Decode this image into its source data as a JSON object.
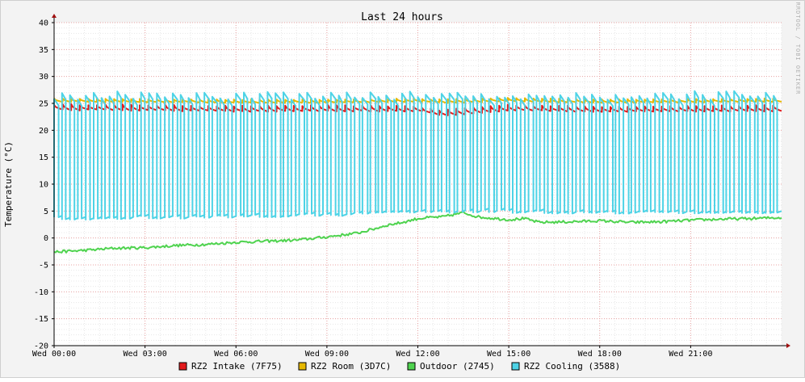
{
  "chart_data": {
    "type": "line",
    "title": "Last 24 hours",
    "ylabel": "Temperature (°C)",
    "xlabel": "",
    "watermark": "RRDTOOL / TOBI OETIKER",
    "ylim": [
      -20,
      40
    ],
    "yticks": [
      -20,
      -15,
      -10,
      -5,
      0,
      5,
      10,
      15,
      20,
      25,
      30,
      35,
      40
    ],
    "x_range_hours": [
      0,
      24
    ],
    "xticks": [
      {
        "hour": 0,
        "label": "Wed 00:00"
      },
      {
        "hour": 3,
        "label": "Wed 03:00"
      },
      {
        "hour": 6,
        "label": "Wed 06:00"
      },
      {
        "hour": 9,
        "label": "Wed 09:00"
      },
      {
        "hour": 12,
        "label": "Wed 12:00"
      },
      {
        "hour": 15,
        "label": "Wed 15:00"
      },
      {
        "hour": 18,
        "label": "Wed 18:00"
      },
      {
        "hour": 21,
        "label": "Wed 21:00"
      }
    ],
    "grid": true,
    "legend_position": "bottom",
    "series": [
      {
        "name": "RZ2 Intake (7F75)",
        "color": "#e31a1c",
        "kind": "sawtooth",
        "points": [
          [
            0,
            24.3
          ],
          [
            3,
            24.2
          ],
          [
            6,
            24.0
          ],
          [
            9,
            24.1
          ],
          [
            12,
            24.0
          ],
          [
            12.8,
            23.2
          ],
          [
            15,
            24.2
          ],
          [
            18,
            23.9
          ],
          [
            21,
            24.0
          ],
          [
            24,
            24.1
          ]
        ],
        "amplitude": 1.0,
        "cycles": 85
      },
      {
        "name": "RZ2 Room (3D7C)",
        "color": "#e6b800",
        "kind": "sawtooth",
        "points": [
          [
            0,
            25.6
          ],
          [
            3,
            25.5
          ],
          [
            6,
            25.4
          ],
          [
            9,
            25.4
          ],
          [
            12,
            25.6
          ],
          [
            12.8,
            25.4
          ],
          [
            15,
            25.7
          ],
          [
            18,
            25.4
          ],
          [
            21,
            25.5
          ],
          [
            24,
            25.6
          ]
        ],
        "amplitude": 0.6,
        "cycles": 85
      },
      {
        "name": "Outdoor (2745)",
        "color": "#4fd34f",
        "kind": "smooth",
        "points": [
          [
            0,
            -2.6
          ],
          [
            1,
            -2.3
          ],
          [
            2,
            -1.9
          ],
          [
            3,
            -1.8
          ],
          [
            4,
            -1.4
          ],
          [
            5,
            -1.2
          ],
          [
            6,
            -0.8
          ],
          [
            7,
            -0.6
          ],
          [
            8,
            -0.4
          ],
          [
            9,
            0.2
          ],
          [
            10,
            0.9
          ],
          [
            10.5,
            1.6
          ],
          [
            11,
            2.4
          ],
          [
            11.5,
            2.9
          ],
          [
            12,
            3.6
          ],
          [
            12.4,
            3.8
          ],
          [
            12.8,
            3.9
          ],
          [
            13.5,
            4.7
          ],
          [
            14,
            3.9
          ],
          [
            15,
            3.4
          ],
          [
            15.5,
            3.6
          ],
          [
            16,
            2.9
          ],
          [
            17,
            3.0
          ],
          [
            18,
            3.2
          ],
          [
            19,
            2.9
          ],
          [
            20,
            3.0
          ],
          [
            21,
            3.3
          ],
          [
            22,
            3.5
          ],
          [
            23,
            3.6
          ],
          [
            24,
            3.8
          ]
        ],
        "noise": 0.25
      },
      {
        "name": "RZ2 Cooling (3588)",
        "color": "#4dd3e6",
        "kind": "square",
        "high": 26.5,
        "low_points": [
          [
            0,
            3.6
          ],
          [
            3,
            3.8
          ],
          [
            6,
            4.0
          ],
          [
            9,
            4.3
          ],
          [
            11.5,
            4.8
          ],
          [
            12,
            5.0
          ],
          [
            15,
            4.9
          ],
          [
            18,
            4.7
          ],
          [
            21,
            4.7
          ],
          [
            24,
            4.8
          ]
        ],
        "cycles": 92
      }
    ],
    "legend": [
      {
        "label": "RZ2 Intake (7F75)",
        "color": "#e31a1c"
      },
      {
        "label": "RZ2 Room (3D7C)",
        "color": "#e6b800"
      },
      {
        "label": "Outdoor (2745)",
        "color": "#4fd34f"
      },
      {
        "label": "RZ2 Cooling (3588)",
        "color": "#4dd3e6"
      }
    ]
  }
}
